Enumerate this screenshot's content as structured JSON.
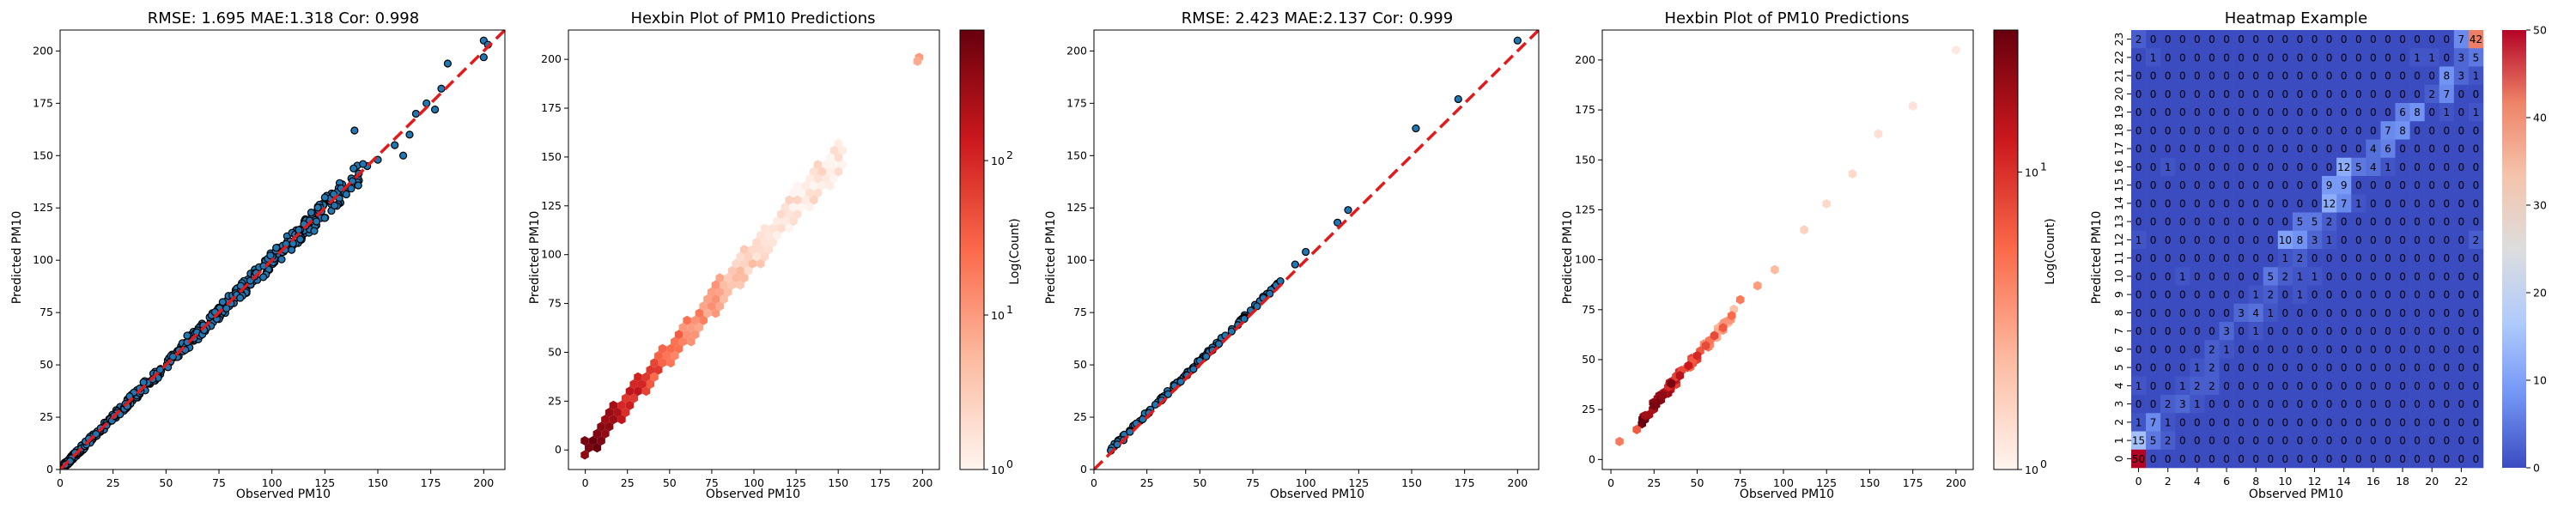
{
  "chart_data": [
    {
      "type": "scatter",
      "title": "RMSE: 1.695 MAE:1.318 Cor: 0.998",
      "xlabel": "Observed PM10",
      "ylabel": "Predicted PM10",
      "xlim": [
        0,
        210
      ],
      "ylim": [
        0,
        210
      ],
      "xticks": [
        "0",
        "25",
        "50",
        "75",
        "100",
        "125",
        "150",
        "175",
        "200"
      ],
      "yticks": [
        "0",
        "25",
        "50",
        "75",
        "100",
        "125",
        "150",
        "175",
        "200"
      ],
      "point_color": "#1f77b4",
      "edge_color": "#000000",
      "ref_line": {
        "from": [
          0,
          0
        ],
        "to": [
          210,
          210
        ],
        "color": "#e31a1c",
        "style": "dashed"
      },
      "outliers": [
        {
          "x": 145,
          "y": 145
        },
        {
          "x": 150,
          "y": 148
        },
        {
          "x": 158,
          "y": 155
        },
        {
          "x": 162,
          "y": 150
        },
        {
          "x": 165,
          "y": 160
        },
        {
          "x": 168,
          "y": 170
        },
        {
          "x": 173,
          "y": 175
        },
        {
          "x": 177,
          "y": 172
        },
        {
          "x": 180,
          "y": 182
        },
        {
          "x": 183,
          "y": 194
        },
        {
          "x": 139,
          "y": 162
        },
        {
          "x": 143,
          "y": 146
        },
        {
          "x": 120,
          "y": 114
        },
        {
          "x": 125,
          "y": 130
        },
        {
          "x": 200,
          "y": 205
        },
        {
          "x": 200,
          "y": 197
        },
        {
          "x": 202,
          "y": 203
        },
        {
          "x": 110,
          "y": 108
        },
        {
          "x": 60,
          "y": 64
        },
        {
          "x": 85,
          "y": 82
        }
      ]
    },
    {
      "type": "hexbin",
      "title": "Hexbin Plot of PM10 Predictions",
      "xlabel": "Observed PM10",
      "ylabel": "Predicted PM10",
      "xlim": [
        -10,
        210
      ],
      "ylim": [
        -10,
        215
      ],
      "xticks": [
        "0",
        "25",
        "50",
        "75",
        "100",
        "125",
        "150",
        "175",
        "200"
      ],
      "yticks": [
        "0",
        "25",
        "50",
        "75",
        "100",
        "125",
        "150",
        "175",
        "200"
      ],
      "colorbar": {
        "label": "Log(Count)",
        "scale": "log",
        "min": 1,
        "max": 700,
        "ticks": [
          "10",
          "10",
          "10"
        ],
        "tick_exponents": [
          "0",
          "1",
          "2"
        ],
        "cmap": [
          "#fff5f0",
          "#fcbba1",
          "#fb6a4a",
          "#cb181d",
          "#67000d"
        ]
      },
      "extra_points": [
        {
          "x": 198,
          "y": 201,
          "level": 0.35
        },
        {
          "x": 197,
          "y": 199,
          "level": 0.3
        }
      ]
    },
    {
      "type": "scatter",
      "title": "RMSE: 2.423 MAE:2.137 Cor: 0.999",
      "xlabel": "Observed PM10",
      "ylabel": "Predicted PM10",
      "xlim": [
        0,
        210
      ],
      "ylim": [
        0,
        210
      ],
      "xticks": [
        "0",
        "25",
        "50",
        "75",
        "100",
        "125",
        "150",
        "175",
        "200"
      ],
      "yticks": [
        "0",
        "25",
        "50",
        "75",
        "100",
        "125",
        "150",
        "175",
        "200"
      ],
      "point_color": "#1f77b4",
      "edge_color": "#000000",
      "ref_line": {
        "from": [
          0,
          0
        ],
        "to": [
          210,
          210
        ],
        "color": "#e31a1c",
        "style": "dashed"
      },
      "points": [
        {
          "x": 8,
          "y": 9
        },
        {
          "x": 11,
          "y": 12
        },
        {
          "x": 14,
          "y": 14
        },
        {
          "x": 17,
          "y": 18
        },
        {
          "x": 20,
          "y": 22
        },
        {
          "x": 23,
          "y": 24
        },
        {
          "x": 26,
          "y": 27
        },
        {
          "x": 29,
          "y": 31
        },
        {
          "x": 32,
          "y": 33
        },
        {
          "x": 35,
          "y": 36
        },
        {
          "x": 38,
          "y": 40
        },
        {
          "x": 41,
          "y": 42
        },
        {
          "x": 44,
          "y": 45
        },
        {
          "x": 47,
          "y": 48
        },
        {
          "x": 50,
          "y": 52
        },
        {
          "x": 53,
          "y": 54
        },
        {
          "x": 56,
          "y": 57
        },
        {
          "x": 59,
          "y": 60
        },
        {
          "x": 62,
          "y": 64
        },
        {
          "x": 65,
          "y": 66
        },
        {
          "x": 68,
          "y": 69
        },
        {
          "x": 71,
          "y": 72
        },
        {
          "x": 74,
          "y": 76
        },
        {
          "x": 77,
          "y": 78
        },
        {
          "x": 80,
          "y": 82
        },
        {
          "x": 83,
          "y": 84
        },
        {
          "x": 86,
          "y": 88
        },
        {
          "x": 88,
          "y": 90
        },
        {
          "x": 95,
          "y": 98
        },
        {
          "x": 100,
          "y": 104
        },
        {
          "x": 115,
          "y": 118
        },
        {
          "x": 120,
          "y": 124
        },
        {
          "x": 152,
          "y": 163
        },
        {
          "x": 172,
          "y": 177
        },
        {
          "x": 200,
          "y": 205
        }
      ]
    },
    {
      "type": "hexbin",
      "title": "Hexbin Plot of PM10 Predictions",
      "xlabel": "Observed PM10",
      "ylabel": "Predicted PM10",
      "xlim": [
        -5,
        210
      ],
      "ylim": [
        -5,
        215
      ],
      "xticks": [
        "0",
        "25",
        "50",
        "75",
        "100",
        "125",
        "150",
        "175",
        "200"
      ],
      "yticks": [
        "0",
        "25",
        "50",
        "75",
        "100",
        "125",
        "150",
        "175",
        "200"
      ],
      "colorbar": {
        "label": "Log(Count)",
        "scale": "log",
        "min": 1,
        "max": 30,
        "ticks": [
          "10",
          "10"
        ],
        "tick_exponents": [
          "0",
          "1"
        ],
        "cmap": [
          "#fff5f0",
          "#fcbba1",
          "#fb6a4a",
          "#cb181d",
          "#67000d"
        ]
      },
      "cells": [
        {
          "x": 5,
          "y": 9,
          "level": 0.45
        },
        {
          "x": 15,
          "y": 15,
          "level": 0.55
        },
        {
          "x": 20,
          "y": 22,
          "level": 0.85
        },
        {
          "x": 25,
          "y": 27,
          "level": 0.95
        },
        {
          "x": 30,
          "y": 32,
          "level": 0.9
        },
        {
          "x": 35,
          "y": 38,
          "level": 0.95
        },
        {
          "x": 40,
          "y": 42,
          "level": 0.8
        },
        {
          "x": 45,
          "y": 47,
          "level": 0.75
        },
        {
          "x": 50,
          "y": 52,
          "level": 0.7
        },
        {
          "x": 55,
          "y": 57,
          "level": 0.6
        },
        {
          "x": 60,
          "y": 62,
          "level": 0.6
        },
        {
          "x": 65,
          "y": 66,
          "level": 0.55
        },
        {
          "x": 70,
          "y": 72,
          "level": 0.5
        },
        {
          "x": 75,
          "y": 80,
          "level": 0.45
        },
        {
          "x": 85,
          "y": 87,
          "level": 0.35
        },
        {
          "x": 95,
          "y": 95,
          "level": 0.25
        },
        {
          "x": 112,
          "y": 115,
          "level": 0.15
        },
        {
          "x": 125,
          "y": 128,
          "level": 0.12
        },
        {
          "x": 140,
          "y": 143,
          "level": 0.12
        },
        {
          "x": 155,
          "y": 163,
          "level": 0.1
        },
        {
          "x": 175,
          "y": 177,
          "level": 0.08
        },
        {
          "x": 200,
          "y": 205,
          "level": 0.05
        }
      ]
    },
    {
      "type": "heatmap",
      "title": "Heatmap Example",
      "xlabel": "Observed PM10",
      "ylabel": "Predicted PM10",
      "x_ticks": [
        "0",
        "2",
        "4",
        "6",
        "8",
        "10",
        "12",
        "14",
        "16",
        "18",
        "20",
        "22"
      ],
      "y_ticks": [
        "0",
        "1",
        "2",
        "3",
        "4",
        "5",
        "6",
        "7",
        "8",
        "9",
        "10",
        "11",
        "12",
        "13",
        "14",
        "15",
        "16",
        "17",
        "18",
        "19",
        "20",
        "21",
        "22",
        "23"
      ],
      "colorbar": {
        "min": 0,
        "max": 50,
        "ticks": [
          "0",
          "10",
          "20",
          "30",
          "40",
          "50"
        ],
        "cmap": [
          "#3b4cc0",
          "#7396f5",
          "#b0cbfc",
          "#dddddd",
          "#f5c4ac",
          "#ee8468",
          "#b40426"
        ]
      },
      "matrix": [
        [
          2,
          0,
          0,
          0,
          0,
          0,
          0,
          0,
          0,
          0,
          0,
          0,
          0,
          0,
          0,
          0,
          0,
          0,
          0,
          0,
          0,
          0,
          7,
          42
        ],
        [
          0,
          1,
          0,
          0,
          0,
          0,
          0,
          0,
          0,
          0,
          0,
          0,
          0,
          0,
          0,
          0,
          0,
          0,
          0,
          1,
          1,
          0,
          3,
          5
        ],
        [
          0,
          0,
          0,
          0,
          0,
          0,
          0,
          0,
          0,
          0,
          0,
          0,
          0,
          0,
          0,
          0,
          0,
          0,
          0,
          0,
          0,
          8,
          3,
          1
        ],
        [
          0,
          0,
          0,
          0,
          0,
          0,
          0,
          0,
          0,
          0,
          0,
          0,
          0,
          0,
          0,
          0,
          0,
          0,
          0,
          0,
          2,
          7,
          0,
          0
        ],
        [
          0,
          0,
          0,
          0,
          0,
          0,
          0,
          0,
          0,
          0,
          0,
          0,
          0,
          0,
          0,
          0,
          0,
          0,
          6,
          8,
          0,
          1,
          0,
          1
        ],
        [
          0,
          0,
          0,
          0,
          0,
          0,
          0,
          0,
          0,
          0,
          0,
          0,
          0,
          0,
          0,
          0,
          0,
          7,
          8,
          0,
          0,
          0,
          0,
          0
        ],
        [
          0,
          0,
          0,
          0,
          0,
          0,
          0,
          0,
          0,
          0,
          0,
          0,
          0,
          0,
          0,
          0,
          4,
          6,
          0,
          0,
          0,
          0,
          0,
          0
        ],
        [
          0,
          0,
          1,
          0,
          0,
          0,
          0,
          0,
          0,
          0,
          0,
          0,
          0,
          0,
          12,
          5,
          4,
          1,
          0,
          0,
          0,
          0,
          0,
          0
        ],
        [
          0,
          0,
          0,
          0,
          0,
          0,
          0,
          0,
          0,
          0,
          0,
          0,
          0,
          9,
          9,
          0,
          0,
          0,
          0,
          0,
          0,
          0,
          0,
          0
        ],
        [
          0,
          0,
          0,
          0,
          0,
          0,
          0,
          0,
          0,
          0,
          0,
          0,
          0,
          12,
          7,
          1,
          0,
          0,
          0,
          0,
          0,
          0,
          0,
          0
        ],
        [
          0,
          0,
          0,
          0,
          0,
          0,
          0,
          0,
          0,
          0,
          0,
          5,
          5,
          2,
          0,
          0,
          0,
          0,
          0,
          0,
          0,
          0,
          0,
          0
        ],
        [
          1,
          0,
          0,
          0,
          0,
          0,
          0,
          0,
          0,
          0,
          10,
          8,
          3,
          1,
          0,
          0,
          0,
          0,
          0,
          0,
          0,
          0,
          0,
          2
        ],
        [
          0,
          0,
          0,
          0,
          0,
          0,
          0,
          0,
          0,
          0,
          1,
          2,
          0,
          0,
          0,
          0,
          0,
          0,
          0,
          0,
          0,
          0,
          0,
          0
        ],
        [
          0,
          0,
          0,
          1,
          0,
          0,
          0,
          0,
          0,
          5,
          2,
          1,
          1,
          0,
          0,
          0,
          0,
          0,
          0,
          0,
          0,
          0,
          0,
          0
        ],
        [
          0,
          0,
          0,
          0,
          0,
          0,
          0,
          0,
          1,
          2,
          0,
          1,
          0,
          0,
          0,
          0,
          0,
          0,
          0,
          0,
          0,
          0,
          0,
          0
        ],
        [
          0,
          0,
          0,
          0,
          0,
          0,
          0,
          3,
          4,
          1,
          0,
          0,
          0,
          0,
          0,
          0,
          0,
          0,
          0,
          0,
          0,
          0,
          0,
          0
        ],
        [
          0,
          0,
          0,
          0,
          0,
          0,
          3,
          0,
          1,
          0,
          0,
          0,
          0,
          0,
          0,
          0,
          0,
          0,
          0,
          0,
          0,
          0,
          0,
          0
        ],
        [
          0,
          0,
          0,
          0,
          0,
          2,
          1,
          0,
          0,
          0,
          0,
          0,
          0,
          0,
          0,
          0,
          0,
          0,
          0,
          0,
          0,
          0,
          0,
          0
        ],
        [
          0,
          0,
          0,
          0,
          1,
          2,
          0,
          0,
          0,
          0,
          0,
          0,
          0,
          0,
          0,
          0,
          0,
          0,
          0,
          0,
          0,
          0,
          0,
          0
        ],
        [
          1,
          0,
          0,
          1,
          2,
          2,
          0,
          0,
          0,
          0,
          0,
          0,
          0,
          0,
          0,
          0,
          0,
          0,
          0,
          0,
          0,
          0,
          0,
          0
        ],
        [
          0,
          0,
          2,
          3,
          1,
          0,
          0,
          0,
          0,
          0,
          0,
          0,
          0,
          0,
          0,
          0,
          0,
          0,
          0,
          0,
          0,
          0,
          0,
          0
        ],
        [
          1,
          7,
          1,
          0,
          0,
          0,
          0,
          0,
          0,
          0,
          0,
          0,
          0,
          0,
          0,
          0,
          0,
          0,
          0,
          0,
          0,
          0,
          0,
          0
        ],
        [
          15,
          5,
          2,
          0,
          0,
          0,
          0,
          0,
          0,
          0,
          0,
          0,
          0,
          0,
          0,
          0,
          0,
          0,
          0,
          0,
          0,
          0,
          0,
          0
        ],
        [
          50,
          0,
          0,
          0,
          0,
          0,
          0,
          0,
          0,
          0,
          0,
          0,
          0,
          0,
          0,
          0,
          0,
          0,
          0,
          0,
          0,
          0,
          0,
          0
        ]
      ]
    }
  ]
}
